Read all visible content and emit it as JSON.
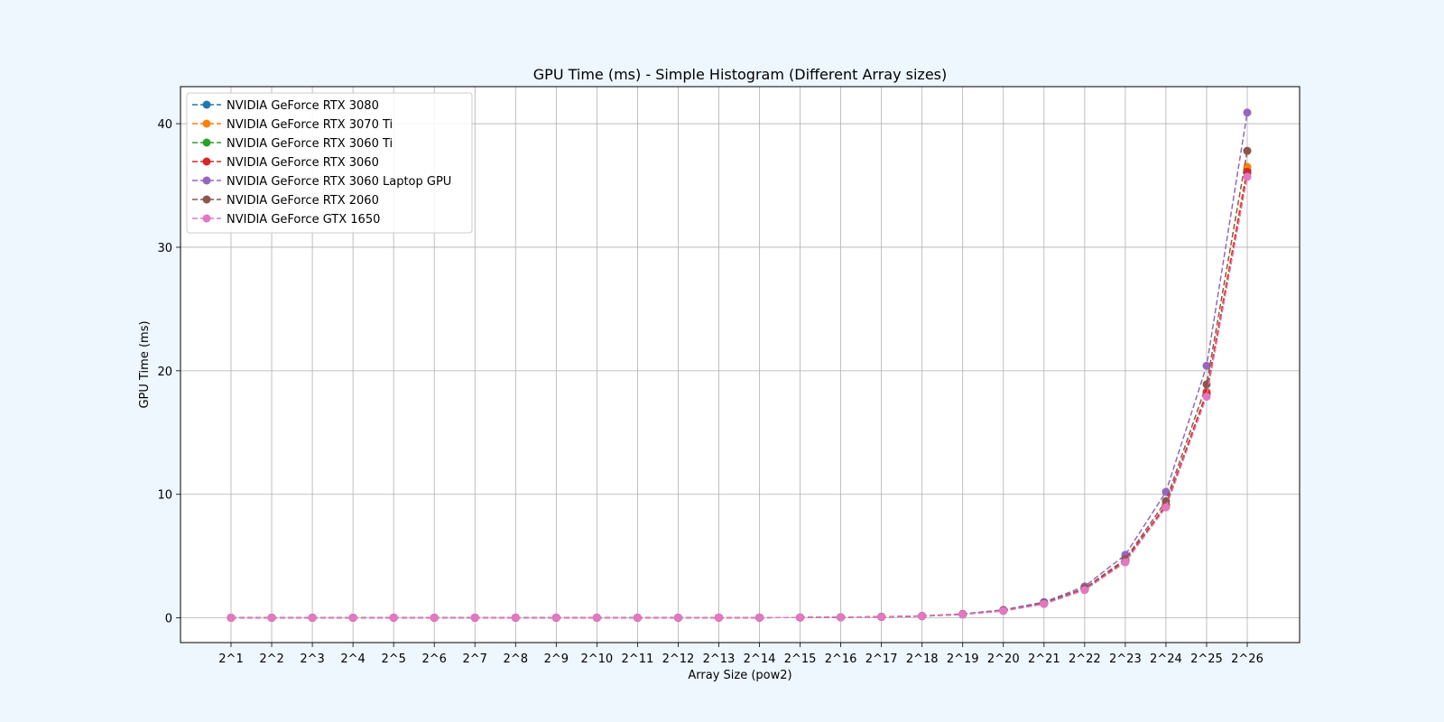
{
  "colors": {
    "page_background": "#eef6fe",
    "plot_background": "#ffffff",
    "grid": "#b0b0b0"
  },
  "chart_data": {
    "type": "line",
    "title": "GPU Time (ms) - Simple Histogram (Different Array sizes)",
    "xlabel": "Array Size (pow2)",
    "ylabel": "GPU Time (ms)",
    "categories": [
      "2^1",
      "2^2",
      "2^3",
      "2^4",
      "2^5",
      "2^6",
      "2^7",
      "2^8",
      "2^9",
      "2^10",
      "2^11",
      "2^12",
      "2^13",
      "2^14",
      "2^15",
      "2^16",
      "2^17",
      "2^18",
      "2^19",
      "2^20",
      "2^21",
      "2^22",
      "2^23",
      "2^24",
      "2^25",
      "2^26"
    ],
    "ylim": [
      -2,
      43
    ],
    "yticks": [
      0,
      10,
      20,
      30,
      40
    ],
    "grid": true,
    "legend_position": "top-left",
    "line_style": "dashed",
    "marker": "circle",
    "series": [
      {
        "name": "NVIDIA GeForce RTX 3080",
        "color": "#1f77b4",
        "values": [
          0.01,
          0.01,
          0.01,
          0.01,
          0.01,
          0.01,
          0.01,
          0.01,
          0.01,
          0.01,
          0.01,
          0.01,
          0.02,
          0.02,
          0.03,
          0.05,
          0.08,
          0.14,
          0.28,
          0.58,
          1.15,
          2.3,
          4.6,
          9.1,
          18.2,
          36.2
        ]
      },
      {
        "name": "NVIDIA GeForce RTX 3070 Ti",
        "color": "#ff7f0e",
        "values": [
          0.01,
          0.01,
          0.01,
          0.01,
          0.01,
          0.01,
          0.01,
          0.01,
          0.01,
          0.01,
          0.01,
          0.01,
          0.02,
          0.02,
          0.03,
          0.05,
          0.08,
          0.14,
          0.29,
          0.58,
          1.15,
          2.3,
          4.6,
          9.1,
          18.3,
          36.5
        ]
      },
      {
        "name": "NVIDIA GeForce RTX 3060 Ti",
        "color": "#2ca02c",
        "values": [
          0.01,
          0.01,
          0.01,
          0.01,
          0.01,
          0.01,
          0.01,
          0.01,
          0.01,
          0.01,
          0.01,
          0.01,
          0.02,
          0.02,
          0.03,
          0.05,
          0.08,
          0.14,
          0.28,
          0.57,
          1.14,
          2.28,
          4.55,
          9.05,
          18.1,
          36.0
        ]
      },
      {
        "name": "NVIDIA GeForce RTX 3060",
        "color": "#d62728",
        "values": [
          0.01,
          0.01,
          0.01,
          0.01,
          0.01,
          0.01,
          0.01,
          0.01,
          0.01,
          0.01,
          0.01,
          0.01,
          0.02,
          0.02,
          0.03,
          0.05,
          0.08,
          0.14,
          0.29,
          0.58,
          1.15,
          2.3,
          4.6,
          9.15,
          18.2,
          36.1
        ]
      },
      {
        "name": "NVIDIA GeForce RTX 3060 Laptop GPU",
        "color": "#9467bd",
        "values": [
          0.01,
          0.01,
          0.01,
          0.01,
          0.01,
          0.01,
          0.01,
          0.01,
          0.01,
          0.01,
          0.01,
          0.01,
          0.02,
          0.02,
          0.03,
          0.05,
          0.09,
          0.16,
          0.32,
          0.65,
          1.28,
          2.55,
          5.1,
          10.2,
          20.4,
          40.9
        ]
      },
      {
        "name": "NVIDIA GeForce RTX 2060",
        "color": "#8c564b",
        "values": [
          0.01,
          0.01,
          0.01,
          0.01,
          0.01,
          0.01,
          0.01,
          0.01,
          0.01,
          0.01,
          0.01,
          0.01,
          0.02,
          0.02,
          0.03,
          0.05,
          0.09,
          0.15,
          0.3,
          0.6,
          1.2,
          2.4,
          4.75,
          9.45,
          18.9,
          37.8
        ]
      },
      {
        "name": "NVIDIA GeForce GTX 1650",
        "color": "#e377c2",
        "values": [
          0.01,
          0.01,
          0.01,
          0.01,
          0.01,
          0.01,
          0.01,
          0.01,
          0.01,
          0.01,
          0.01,
          0.01,
          0.02,
          0.02,
          0.03,
          0.05,
          0.08,
          0.14,
          0.28,
          0.56,
          1.12,
          2.25,
          4.5,
          8.95,
          17.9,
          35.7
        ]
      }
    ]
  }
}
